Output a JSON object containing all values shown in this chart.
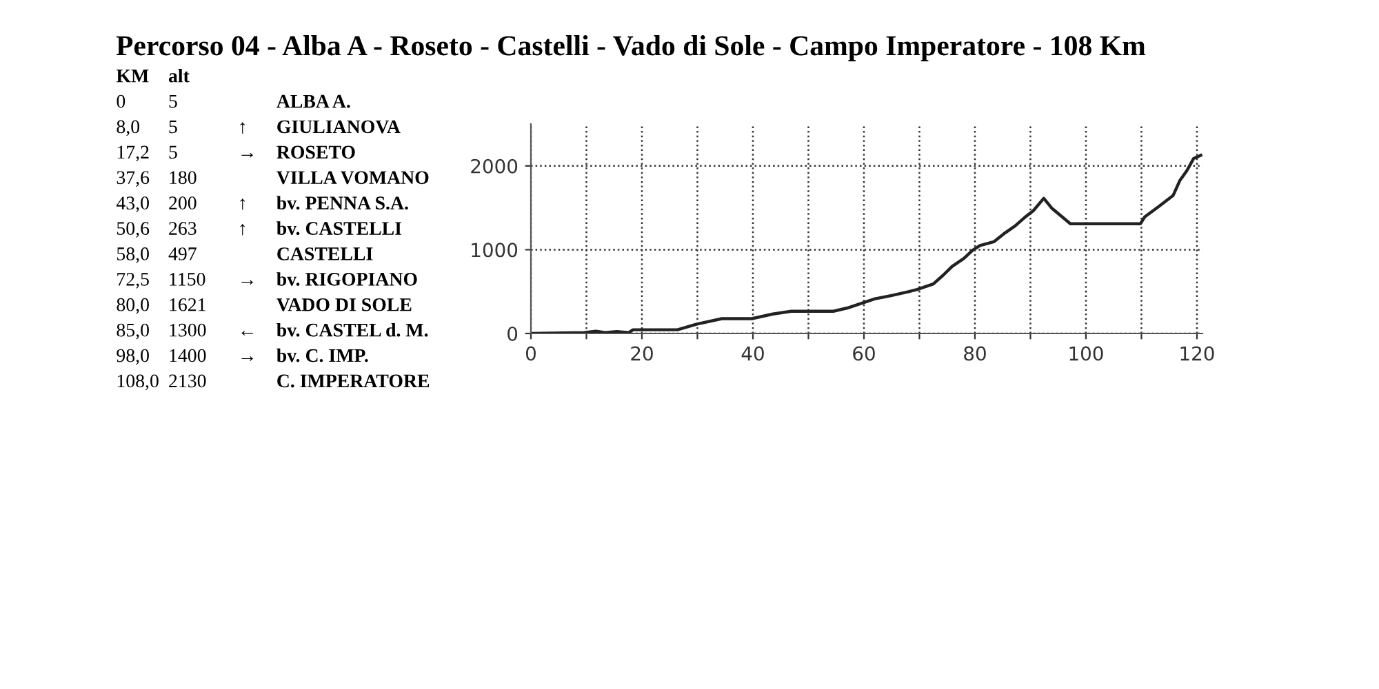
{
  "chart_data": [
    {
      "type": "other",
      "title": "Percorso 04 - Alba A - Roseto - Castelli - Vado di Sole - Campo Imperatore - 108 Km",
      "annotations": [
        "KM\talt",
        "0\t5\t\tALBA A.",
        "8,0\t5\t↑\tGIULIANOVA",
        "17,2\t5\t→\tROSETO",
        "37,6\t180\t\tVILLA VOMANO",
        "43,0\t200\t↑\tbv. PENNA S.A.",
        "50,6\t263\t↑\tbv. CASTELLI",
        "58,0\t497\t\tCASTELLI",
        "72,5\t1150\t→\tbv. RIGOPIANO",
        "80,0\t1621\t\tVADO DI SOLE",
        "85,0\t1300\t←\tbv. CASTEL d. M.",
        "98,0\t1400\t→\tbv. C. IMP.",
        "108,0\t2130\t\tC. IMPERATORE"
      ]
    },
    {
      "type": "line",
      "color": "#222222",
      "grid": true,
      "line_style": "solid",
      "x": [
        0,
        9.6,
        11.7,
        13.4,
        15.5,
        17.6,
        18.4,
        26.4,
        29.8,
        34.4,
        39.8,
        43.6,
        46.9,
        48.6,
        54.5,
        57,
        59.5,
        62,
        65,
        67.9,
        69.6,
        72.5,
        74.2,
        75.9,
        78,
        79.6,
        80.9,
        83.4,
        85.5,
        87.2,
        88.9,
        90.5,
        92.4,
        93.9,
        97.2,
        109.8,
        110.6,
        113.2,
        115.7,
        116.9,
        118.2,
        119.4,
        120.7
      ],
      "values": [
        0,
        10,
        28,
        10,
        22,
        10,
        44,
        44,
        110,
        177,
        177,
        232,
        265,
        265,
        265,
        304,
        359,
        414,
        453,
        497,
        525,
        591,
        691,
        801,
        895,
        994,
        1050,
        1094,
        1204,
        1282,
        1381,
        1464,
        1613,
        1492,
        1309,
        1309,
        1392,
        1519,
        1646,
        1823,
        1945,
        2088,
        2127
      ],
      "xlim": [
        0,
        121
      ],
      "ylim": [
        0,
        2500
      ],
      "xticks": [
        0,
        {
          "value": 10,
          "label": null
        },
        20,
        {
          "value": 30,
          "label": null
        },
        40,
        {
          "value": 50,
          "label": null
        },
        60,
        {
          "value": 70,
          "label": null
        },
        80,
        {
          "value": 90,
          "label": null
        },
        100,
        {
          "value": 110,
          "label": null
        },
        120
      ],
      "yticks": [
        0,
        1000,
        2000
      ]
    }
  ]
}
